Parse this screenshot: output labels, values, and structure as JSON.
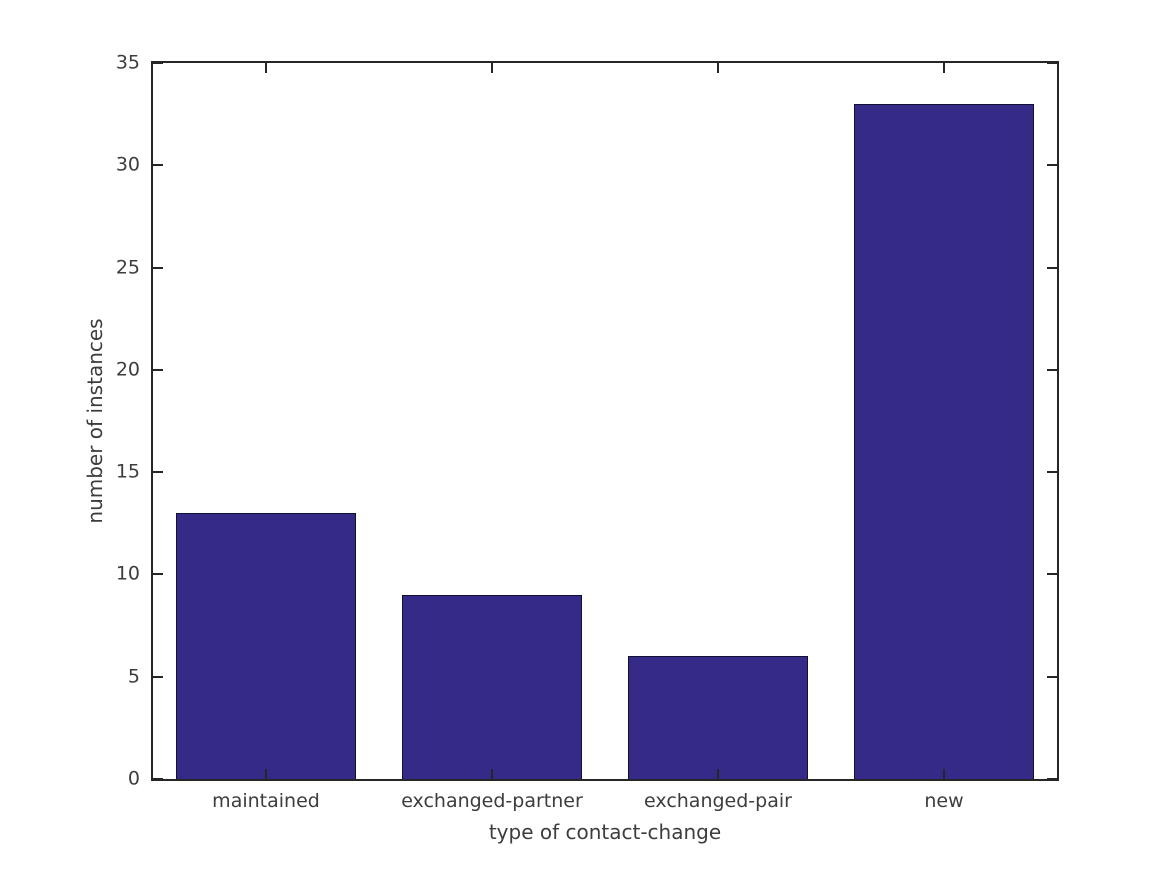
{
  "chart_data": {
    "type": "bar",
    "title": "",
    "xlabel": "type of contact-change",
    "ylabel": "number of instances",
    "categories": [
      "maintained",
      "exchanged-partner",
      "exchanged-pair",
      "new"
    ],
    "values": [
      13,
      9,
      6,
      33
    ],
    "ylim": [
      0,
      35
    ],
    "yticks": [
      0,
      5,
      10,
      15,
      20,
      25,
      30,
      35
    ],
    "bar_fraction": 0.8,
    "grid": false,
    "legend": null,
    "tick_direction": "in",
    "box": true,
    "colors": {
      "bar_fill": "#352a87",
      "bar_edge": "#111133",
      "axis": "#262626",
      "text": "#3d3d3d",
      "background": "#ffffff"
    }
  }
}
